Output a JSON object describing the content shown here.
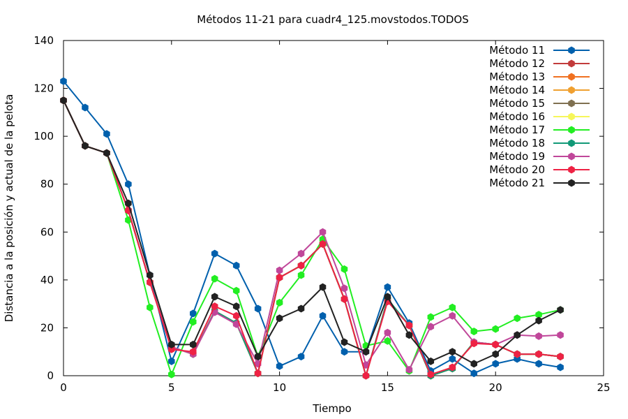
{
  "chart_data": {
    "type": "line",
    "title": "Métodos 11-21 para cuadr4_125.movstodos.TODOS",
    "xlabel": "Tiempo",
    "ylabel": "Distancia a la posición y actual de la pelota",
    "xlim": [
      0,
      25
    ],
    "ylim": [
      0,
      140
    ],
    "xticks": [
      0,
      5,
      10,
      15,
      20,
      25
    ],
    "yticks": [
      0,
      20,
      40,
      60,
      80,
      100,
      120,
      140
    ],
    "grid": false,
    "legend_position": "top-right",
    "x": [
      0,
      1,
      2,
      3,
      4,
      5,
      6,
      7,
      8,
      9,
      10,
      11,
      12,
      13,
      14,
      15,
      16,
      17,
      18,
      19,
      20,
      21,
      22,
      23
    ],
    "series": [
      {
        "name": "Método 11",
        "color": "#0060ad",
        "values": [
          123,
          112,
          101,
          80,
          42,
          6,
          26,
          51,
          46,
          28,
          4,
          8,
          25,
          10,
          10,
          37,
          22,
          2,
          7,
          1,
          5,
          7,
          5,
          3.5
        ]
      },
      {
        "name": "Método 12",
        "color": "#c23b3b",
        "values": [
          115,
          96,
          93,
          69,
          39,
          12,
          9,
          27,
          22,
          1,
          41,
          46,
          55,
          32,
          0,
          32,
          21,
          0,
          3,
          14,
          13,
          9,
          9,
          8
        ]
      },
      {
        "name": "Método 13",
        "color": "#f07020",
        "values": [
          115,
          96,
          93,
          69,
          39,
          12,
          9,
          27,
          22,
          1,
          41,
          46,
          55,
          32,
          0,
          32,
          21,
          0,
          3,
          14,
          13,
          9,
          9,
          8
        ]
      },
      {
        "name": "Método 14",
        "color": "#f0a030",
        "values": [
          115,
          96,
          93,
          69,
          39,
          12,
          9,
          27,
          22,
          1,
          41,
          46,
          55,
          32,
          0,
          32,
          21,
          0,
          3,
          14,
          13,
          9,
          9,
          8
        ]
      },
      {
        "name": "Método 15",
        "color": "#7f7050",
        "values": [
          115,
          96,
          93,
          69,
          39,
          12,
          9,
          27,
          22,
          1,
          41,
          46,
          55,
          32,
          0,
          32,
          21,
          0,
          3,
          14,
          13,
          9,
          9,
          8
        ]
      },
      {
        "name": "Método 16",
        "color": "#f6f65a",
        "values": [
          115,
          96,
          93,
          69,
          39,
          12,
          9,
          27,
          22,
          1,
          41,
          46,
          55,
          32,
          0,
          32,
          21,
          0,
          3,
          14,
          13,
          9,
          9,
          8
        ]
      },
      {
        "name": "Método 17",
        "color": "#22ee22",
        "values": [
          115,
          96,
          93,
          65,
          28.5,
          0.5,
          22.5,
          40.5,
          35.5,
          8,
          30.5,
          42,
          57,
          44.5,
          12.5,
          14.5,
          2,
          24.5,
          28.5,
          18.5,
          19.5,
          24,
          25.5,
          27.5
        ]
      },
      {
        "name": "Método 18",
        "color": "#119977",
        "values": [
          115,
          96,
          93,
          69,
          39,
          12,
          9,
          27,
          22,
          1,
          41,
          46,
          55,
          32,
          0,
          32,
          21,
          0,
          3,
          14,
          13,
          9,
          9,
          8
        ]
      },
      {
        "name": "Método 19",
        "color": "#c0479a",
        "values": [
          115,
          96,
          93,
          69,
          39,
          12,
          9,
          26.5,
          21.5,
          5,
          44,
          51,
          60,
          36.5,
          4.5,
          18,
          2.5,
          20.5,
          25,
          14,
          13,
          17,
          16.5,
          17
        ]
      },
      {
        "name": "Método 20",
        "color": "#ee2244",
        "values": [
          115,
          96,
          93,
          69,
          39,
          11,
          10,
          29,
          25,
          1,
          41,
          46,
          55,
          32,
          0,
          31,
          21,
          0.5,
          3.5,
          13.5,
          13,
          9,
          9,
          8
        ]
      },
      {
        "name": "Método 21",
        "color": "#222222",
        "values": [
          115,
          96,
          93,
          72,
          42,
          13,
          13,
          33,
          29,
          8,
          24,
          28,
          37,
          14,
          10,
          33,
          17,
          6,
          10,
          5,
          9,
          17,
          23,
          27.5
        ]
      }
    ]
  }
}
